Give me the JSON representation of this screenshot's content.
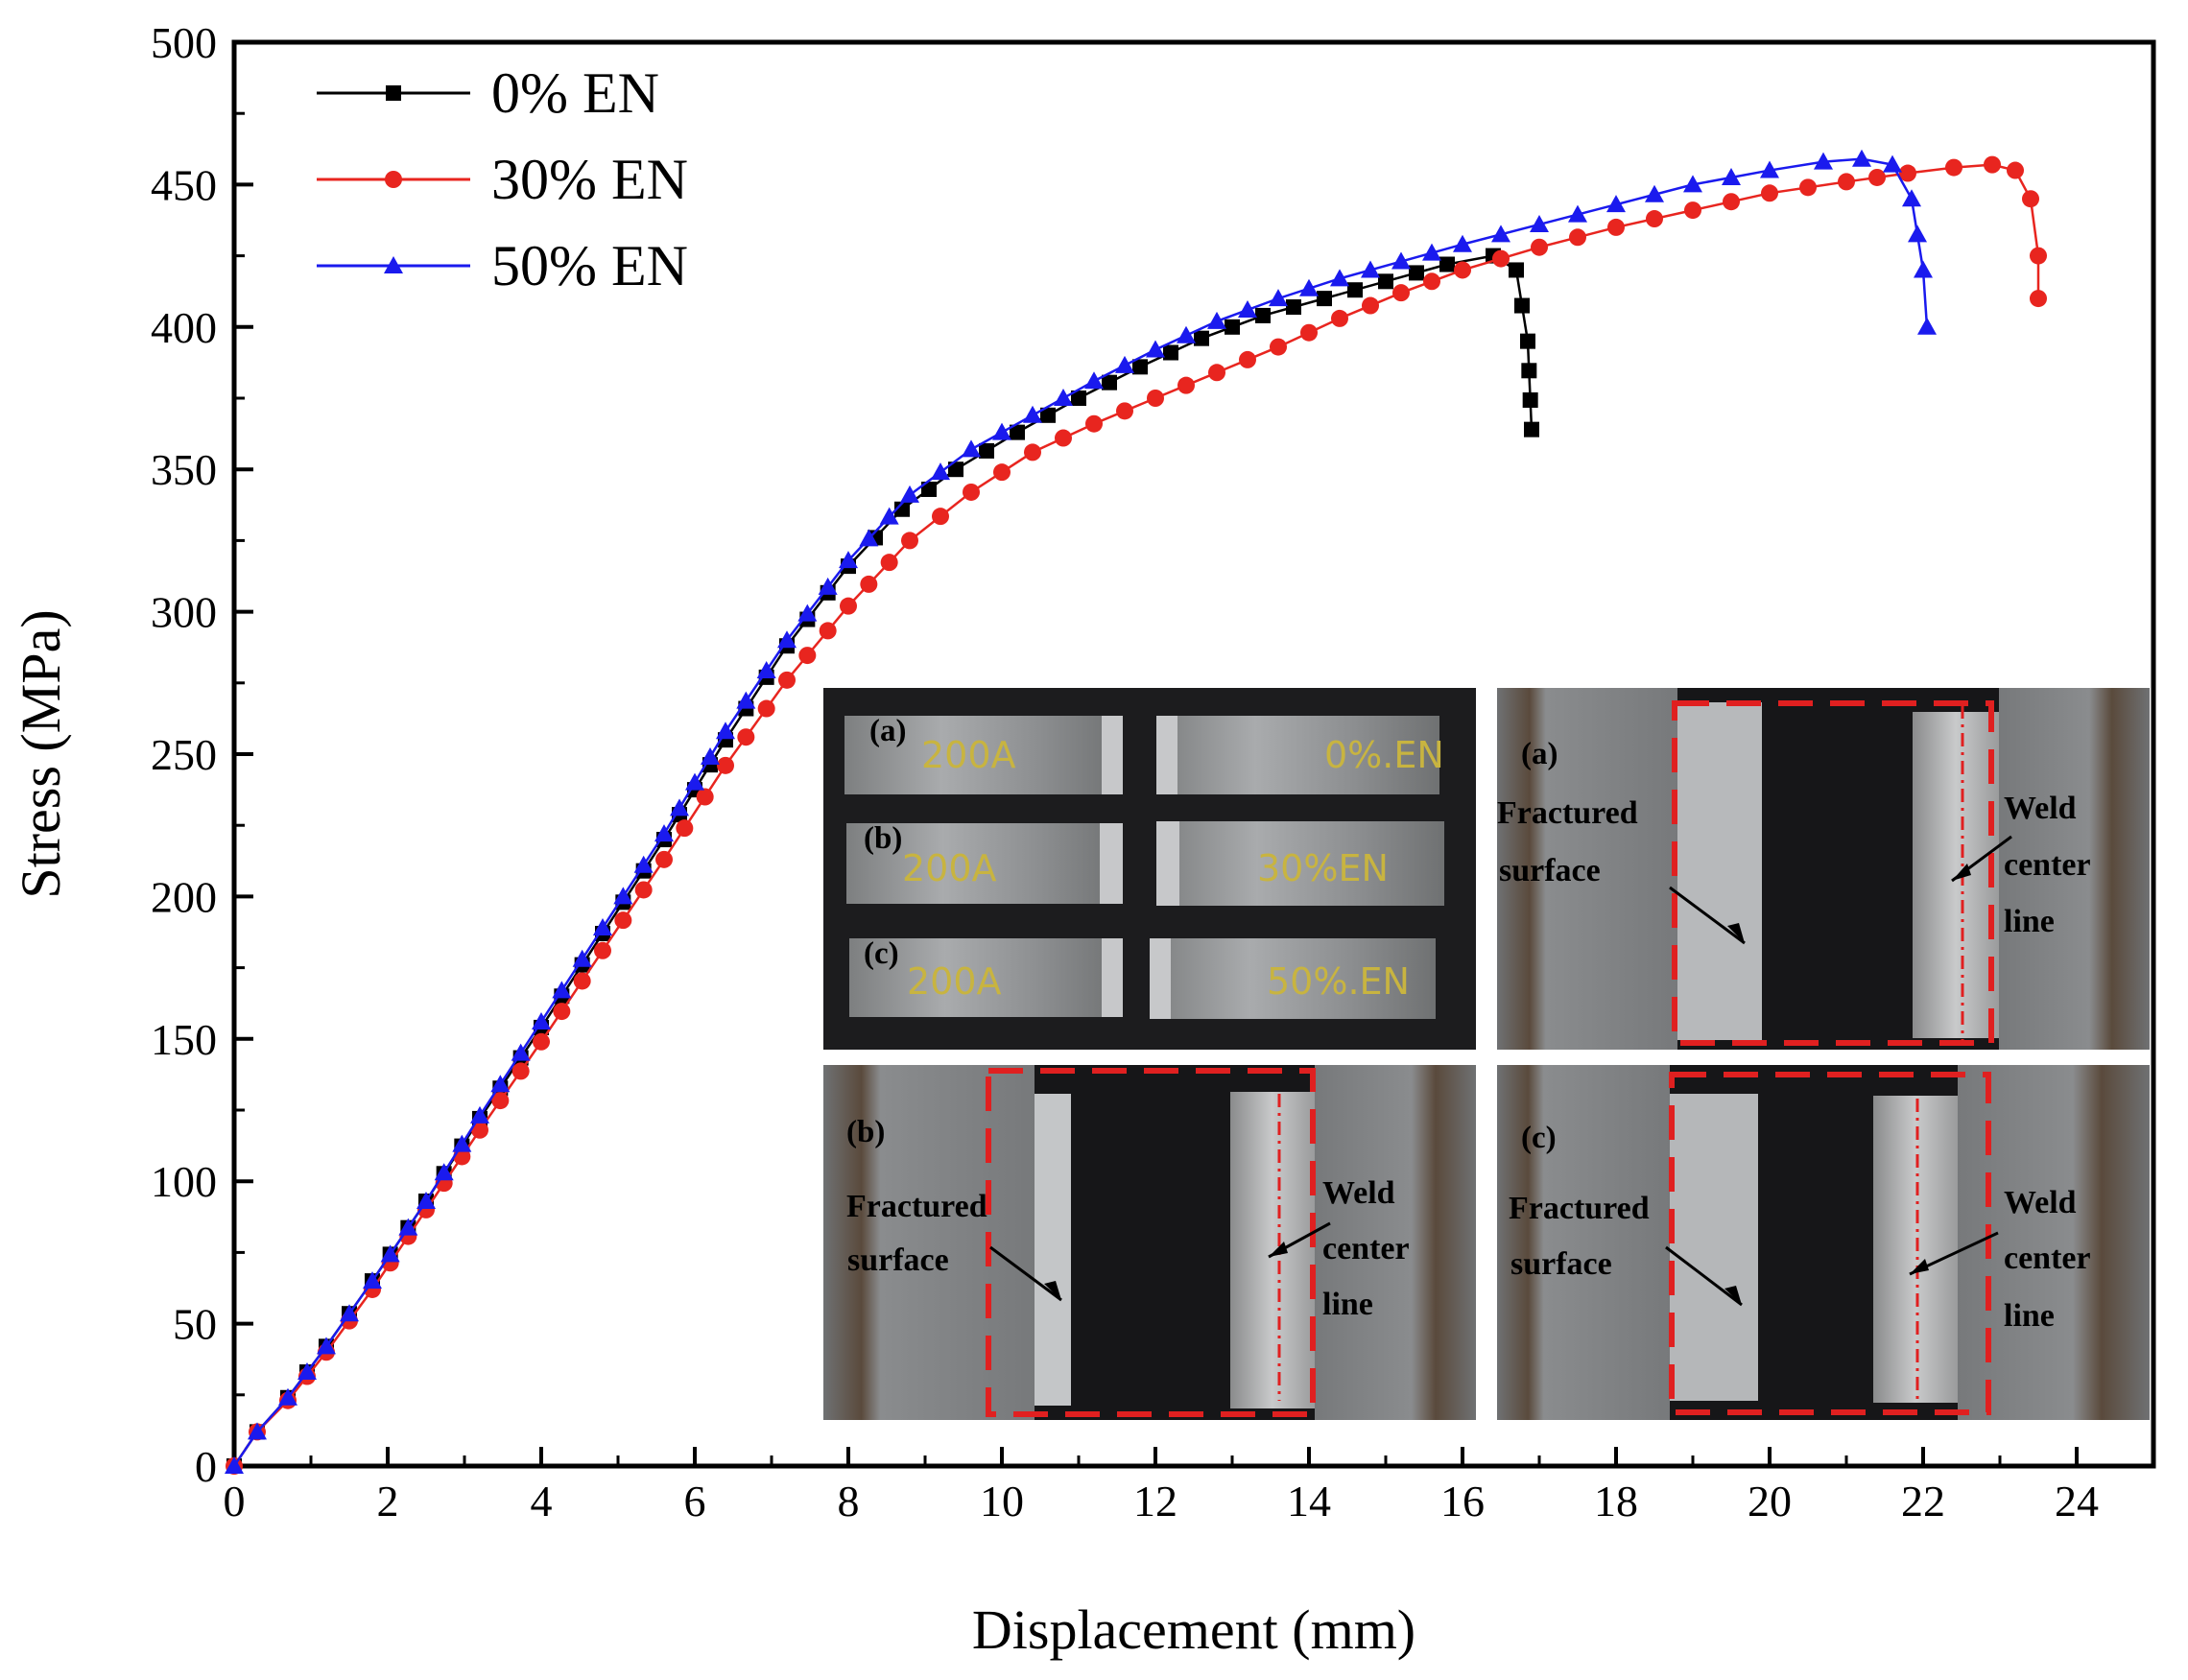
{
  "chart_data": {
    "type": "line",
    "title": "",
    "xlabel": "Displacement (mm)",
    "ylabel": "Stress (MPa)",
    "xlim": [
      0,
      25
    ],
    "ylim": [
      0,
      500
    ],
    "xticks": [
      0,
      2,
      4,
      6,
      8,
      10,
      12,
      14,
      16,
      18,
      20,
      22,
      24
    ],
    "yticks": [
      0,
      50,
      100,
      150,
      200,
      250,
      300,
      350,
      400,
      450,
      500
    ],
    "grid": false,
    "legend_position": "top-left",
    "series": [
      {
        "name": "0% EN",
        "color": "#000000",
        "marker": "square",
        "x": [
          0,
          0.3,
          0.7,
          1.2,
          1.8,
          2.5,
          3.2,
          4.0,
          4.8,
          5.6,
          6.4,
          7.2,
          8.0,
          8.7,
          9.4,
          10.2,
          11.0,
          11.8,
          12.6,
          13.4,
          14.2,
          15.0,
          15.8,
          16.4,
          16.7,
          16.85,
          16.9
        ],
        "y": [
          0,
          12,
          24,
          42,
          65,
          93,
          122,
          154,
          187,
          220,
          255,
          288,
          316,
          336,
          350,
          363,
          375,
          386,
          396,
          404,
          410,
          416,
          422,
          425,
          420,
          395,
          364
        ]
      },
      {
        "name": "30% EN",
        "color": "#e8251f",
        "marker": "circle",
        "x": [
          0,
          0.3,
          0.7,
          1.2,
          1.8,
          2.5,
          3.2,
          4.0,
          4.8,
          5.6,
          6.4,
          7.2,
          8.0,
          8.8,
          9.6,
          10.4,
          11.2,
          12.0,
          12.8,
          13.6,
          14.4,
          15.2,
          16.0,
          17.0,
          18.0,
          19.0,
          20.0,
          21.0,
          21.8,
          22.4,
          22.9,
          23.2,
          23.4,
          23.5,
          23.5
        ],
        "y": [
          0,
          12,
          23,
          40,
          62,
          90,
          118,
          149,
          181,
          213,
          246,
          276,
          302,
          325,
          342,
          356,
          366,
          375,
          384,
          393,
          403,
          412,
          420,
          428,
          435,
          441,
          447,
          451,
          454,
          456,
          457,
          455,
          445,
          425,
          410
        ]
      },
      {
        "name": "50% EN",
        "color": "#1a1aee",
        "marker": "triangle",
        "x": [
          0,
          0.3,
          0.7,
          1.2,
          1.8,
          2.5,
          3.2,
          4.0,
          4.8,
          5.6,
          6.4,
          7.2,
          8.0,
          8.8,
          9.6,
          10.4,
          11.2,
          12.0,
          12.8,
          13.6,
          14.4,
          15.2,
          16.0,
          17.0,
          18.0,
          19.0,
          20.0,
          20.7,
          21.2,
          21.6,
          21.85,
          22.0,
          22.05
        ],
        "y": [
          0,
          12,
          24,
          42,
          65,
          93,
          123,
          156,
          189,
          222,
          258,
          290,
          318,
          341,
          357,
          369,
          381,
          392,
          402,
          410,
          417,
          423,
          429,
          436,
          443,
          450,
          455,
          458,
          459,
          457,
          445,
          420,
          400
        ]
      }
    ],
    "insets": {
      "top_left_labels": [
        "(a)",
        "(b)",
        "(c)"
      ],
      "handwritten_rows": [
        {
          "left": "200A",
          "right": "0%.EN"
        },
        {
          "left": "200A",
          "right": "30%EN"
        },
        {
          "left": "200A",
          "right": "50%.EN"
        }
      ],
      "panels": [
        {
          "tag": "(a)",
          "fractured_lines": [
            "Fractured",
            "surface"
          ],
          "weld_lines": [
            "Weld",
            "center",
            "line"
          ]
        },
        {
          "tag": "(b)",
          "fractured_lines": [
            "Fractured",
            "surface"
          ],
          "weld_lines": [
            "Weld",
            "center",
            "line"
          ]
        },
        {
          "tag": "(c)",
          "fractured_lines": [
            "Fractured",
            "surface"
          ],
          "weld_lines": [
            "Weld",
            "center",
            "line"
          ]
        }
      ]
    }
  }
}
